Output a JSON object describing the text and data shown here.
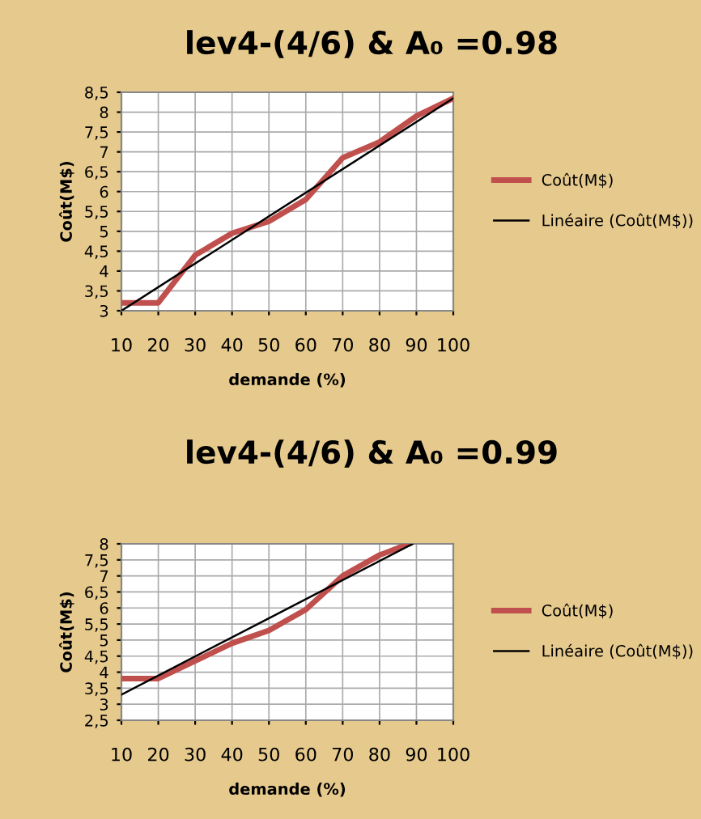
{
  "chart_data": [
    {
      "type": "line",
      "title": "lev4-(4/6) & A₀ =0.98",
      "xlabel": "demande (%)",
      "ylabel": "Coût(M$)",
      "xlim": [
        10,
        100
      ],
      "xticks": [
        10,
        20,
        30,
        40,
        50,
        60,
        70,
        80,
        90,
        100
      ],
      "ylim": [
        3,
        8.5
      ],
      "yticks": [
        3,
        {
          "value": 3.5,
          "label": "3,5"
        },
        4,
        {
          "value": 4.5,
          "label": "4,5"
        },
        5,
        {
          "value": 5.5,
          "label": "5,5"
        },
        6,
        {
          "value": 6.5,
          "label": "6,5"
        },
        7,
        {
          "value": 7.5,
          "label": "7,5"
        },
        8,
        {
          "value": 8.5,
          "label": "8,5"
        }
      ],
      "grid": true,
      "legend": "right",
      "series": [
        {
          "name": "Coût(M$)",
          "color": "#c0504d",
          "x": [
            10,
            20,
            30,
            40,
            50,
            60,
            70,
            80,
            90,
            100
          ],
          "values": [
            3.2,
            3.2,
            4.4,
            4.95,
            5.25,
            5.8,
            6.85,
            7.25,
            7.9,
            8.35
          ]
        },
        {
          "name": "Linéaire (Coût(M$))",
          "color": "#000000",
          "x": [
            10,
            100
          ],
          "values": [
            3.0,
            8.35
          ]
        }
      ]
    },
    {
      "type": "line",
      "title": "lev4-(4/6) & A₀ =0.99",
      "xlabel": "demande (%)",
      "ylabel": "Coût(M$)",
      "xlim": [
        10,
        100
      ],
      "xticks": [
        10,
        20,
        30,
        40,
        50,
        60,
        70,
        80,
        90,
        100
      ],
      "ylim": [
        2.5,
        8
      ],
      "yticks": [
        {
          "value": 2.5,
          "label": "2,5"
        },
        3,
        {
          "value": 3.5,
          "label": "3,5"
        },
        4,
        {
          "value": 4.5,
          "label": "4,5"
        },
        5,
        {
          "value": 5.5,
          "label": "5,5"
        },
        6,
        {
          "value": 6.5,
          "label": "6,5"
        },
        7,
        {
          "value": 7.5,
          "label": "7,5"
        },
        8
      ],
      "grid": true,
      "legend": "right",
      "series": [
        {
          "name": "Coût(M$)",
          "color": "#c0504d",
          "x": [
            10,
            20,
            30,
            40,
            50,
            60,
            70,
            80,
            88
          ],
          "values": [
            3.8,
            3.8,
            4.35,
            4.9,
            5.3,
            5.95,
            7.0,
            7.65,
            8.0
          ]
        },
        {
          "name": "Linéaire (Coût(M$))",
          "color": "#000000",
          "x": [
            10,
            89
          ],
          "values": [
            3.3,
            8.0
          ]
        }
      ]
    }
  ]
}
